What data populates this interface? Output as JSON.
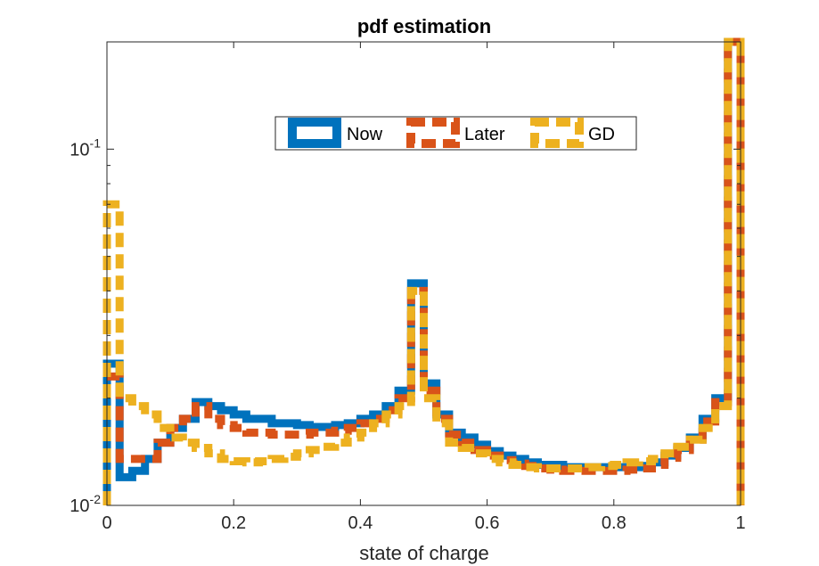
{
  "chart_data": {
    "type": "line",
    "title": "pdf estimation",
    "xlabel": "state of charge",
    "ylabel": "",
    "xlim": [
      0,
      1
    ],
    "ylim": [
      0.01,
      0.2
    ],
    "yscale": "log",
    "grid": false,
    "legend_position": "top",
    "x_ticks": [
      {
        "value": 0,
        "label": "0"
      },
      {
        "value": 0.2,
        "label": "0.2"
      },
      {
        "value": 0.4,
        "label": "0.4"
      },
      {
        "value": 0.6,
        "label": "0.6"
      },
      {
        "value": 0.8,
        "label": "0.8"
      },
      {
        "value": 1,
        "label": "1"
      }
    ],
    "y_ticks": [
      {
        "value": 0.01,
        "base": "10",
        "exp": "-2"
      },
      {
        "value": 0.1,
        "base": "10",
        "exp": "-1"
      }
    ],
    "x": [
      0.01,
      0.03,
      0.05,
      0.07,
      0.09,
      0.11,
      0.13,
      0.15,
      0.17,
      0.19,
      0.21,
      0.23,
      0.25,
      0.27,
      0.29,
      0.31,
      0.33,
      0.35,
      0.37,
      0.39,
      0.41,
      0.43,
      0.45,
      0.47,
      0.49,
      0.51,
      0.53,
      0.55,
      0.57,
      0.59,
      0.61,
      0.63,
      0.65,
      0.67,
      0.69,
      0.71,
      0.73,
      0.75,
      0.77,
      0.79,
      0.81,
      0.83,
      0.85,
      0.87,
      0.89,
      0.91,
      0.93,
      0.95,
      0.97,
      0.99
    ],
    "series": [
      {
        "name": "Now",
        "color": "#0072BD",
        "values": [
          0.025,
          0.012,
          0.0125,
          0.0135,
          0.015,
          0.0165,
          0.0175,
          0.0195,
          0.019,
          0.0185,
          0.018,
          0.0175,
          0.0175,
          0.017,
          0.017,
          0.0168,
          0.0166,
          0.0166,
          0.0168,
          0.017,
          0.0175,
          0.018,
          0.019,
          0.021,
          0.042,
          0.022,
          0.018,
          0.016,
          0.0155,
          0.0148,
          0.0142,
          0.0138,
          0.0135,
          0.0132,
          0.013,
          0.013,
          0.0128,
          0.0128,
          0.0128,
          0.0128,
          0.0128,
          0.0128,
          0.0129,
          0.0132,
          0.0138,
          0.0145,
          0.0155,
          0.0175,
          0.02,
          0.2
        ]
      },
      {
        "name": "Later",
        "color": "#D95319",
        "values": [
          0.023,
          0.0135,
          0.0135,
          0.0135,
          0.015,
          0.0165,
          0.0175,
          0.019,
          0.0175,
          0.0168,
          0.0165,
          0.016,
          0.016,
          0.0158,
          0.0158,
          0.0158,
          0.016,
          0.016,
          0.0162,
          0.0165,
          0.017,
          0.0175,
          0.0185,
          0.02,
          0.04,
          0.021,
          0.0175,
          0.0158,
          0.015,
          0.0143,
          0.0138,
          0.0134,
          0.0131,
          0.0129,
          0.0127,
          0.0126,
          0.0125,
          0.0125,
          0.0125,
          0.0125,
          0.0125,
          0.0126,
          0.0127,
          0.013,
          0.0136,
          0.0143,
          0.0153,
          0.0172,
          0.0195,
          0.2
        ]
      },
      {
        "name": "GD",
        "color": "#EDB120",
        "values": [
          0.07,
          0.02,
          0.019,
          0.018,
          0.0165,
          0.0155,
          0.015,
          0.0145,
          0.014,
          0.0135,
          0.0133,
          0.0132,
          0.0133,
          0.0135,
          0.0137,
          0.014,
          0.0143,
          0.0146,
          0.015,
          0.0155,
          0.016,
          0.017,
          0.018,
          0.019,
          0.04,
          0.02,
          0.017,
          0.015,
          0.0145,
          0.014,
          0.0135,
          0.0132,
          0.013,
          0.0128,
          0.0127,
          0.0127,
          0.0127,
          0.0127,
          0.0128,
          0.0129,
          0.013,
          0.0132,
          0.0133,
          0.0135,
          0.014,
          0.0146,
          0.0153,
          0.0165,
          0.019,
          0.2
        ]
      }
    ]
  }
}
